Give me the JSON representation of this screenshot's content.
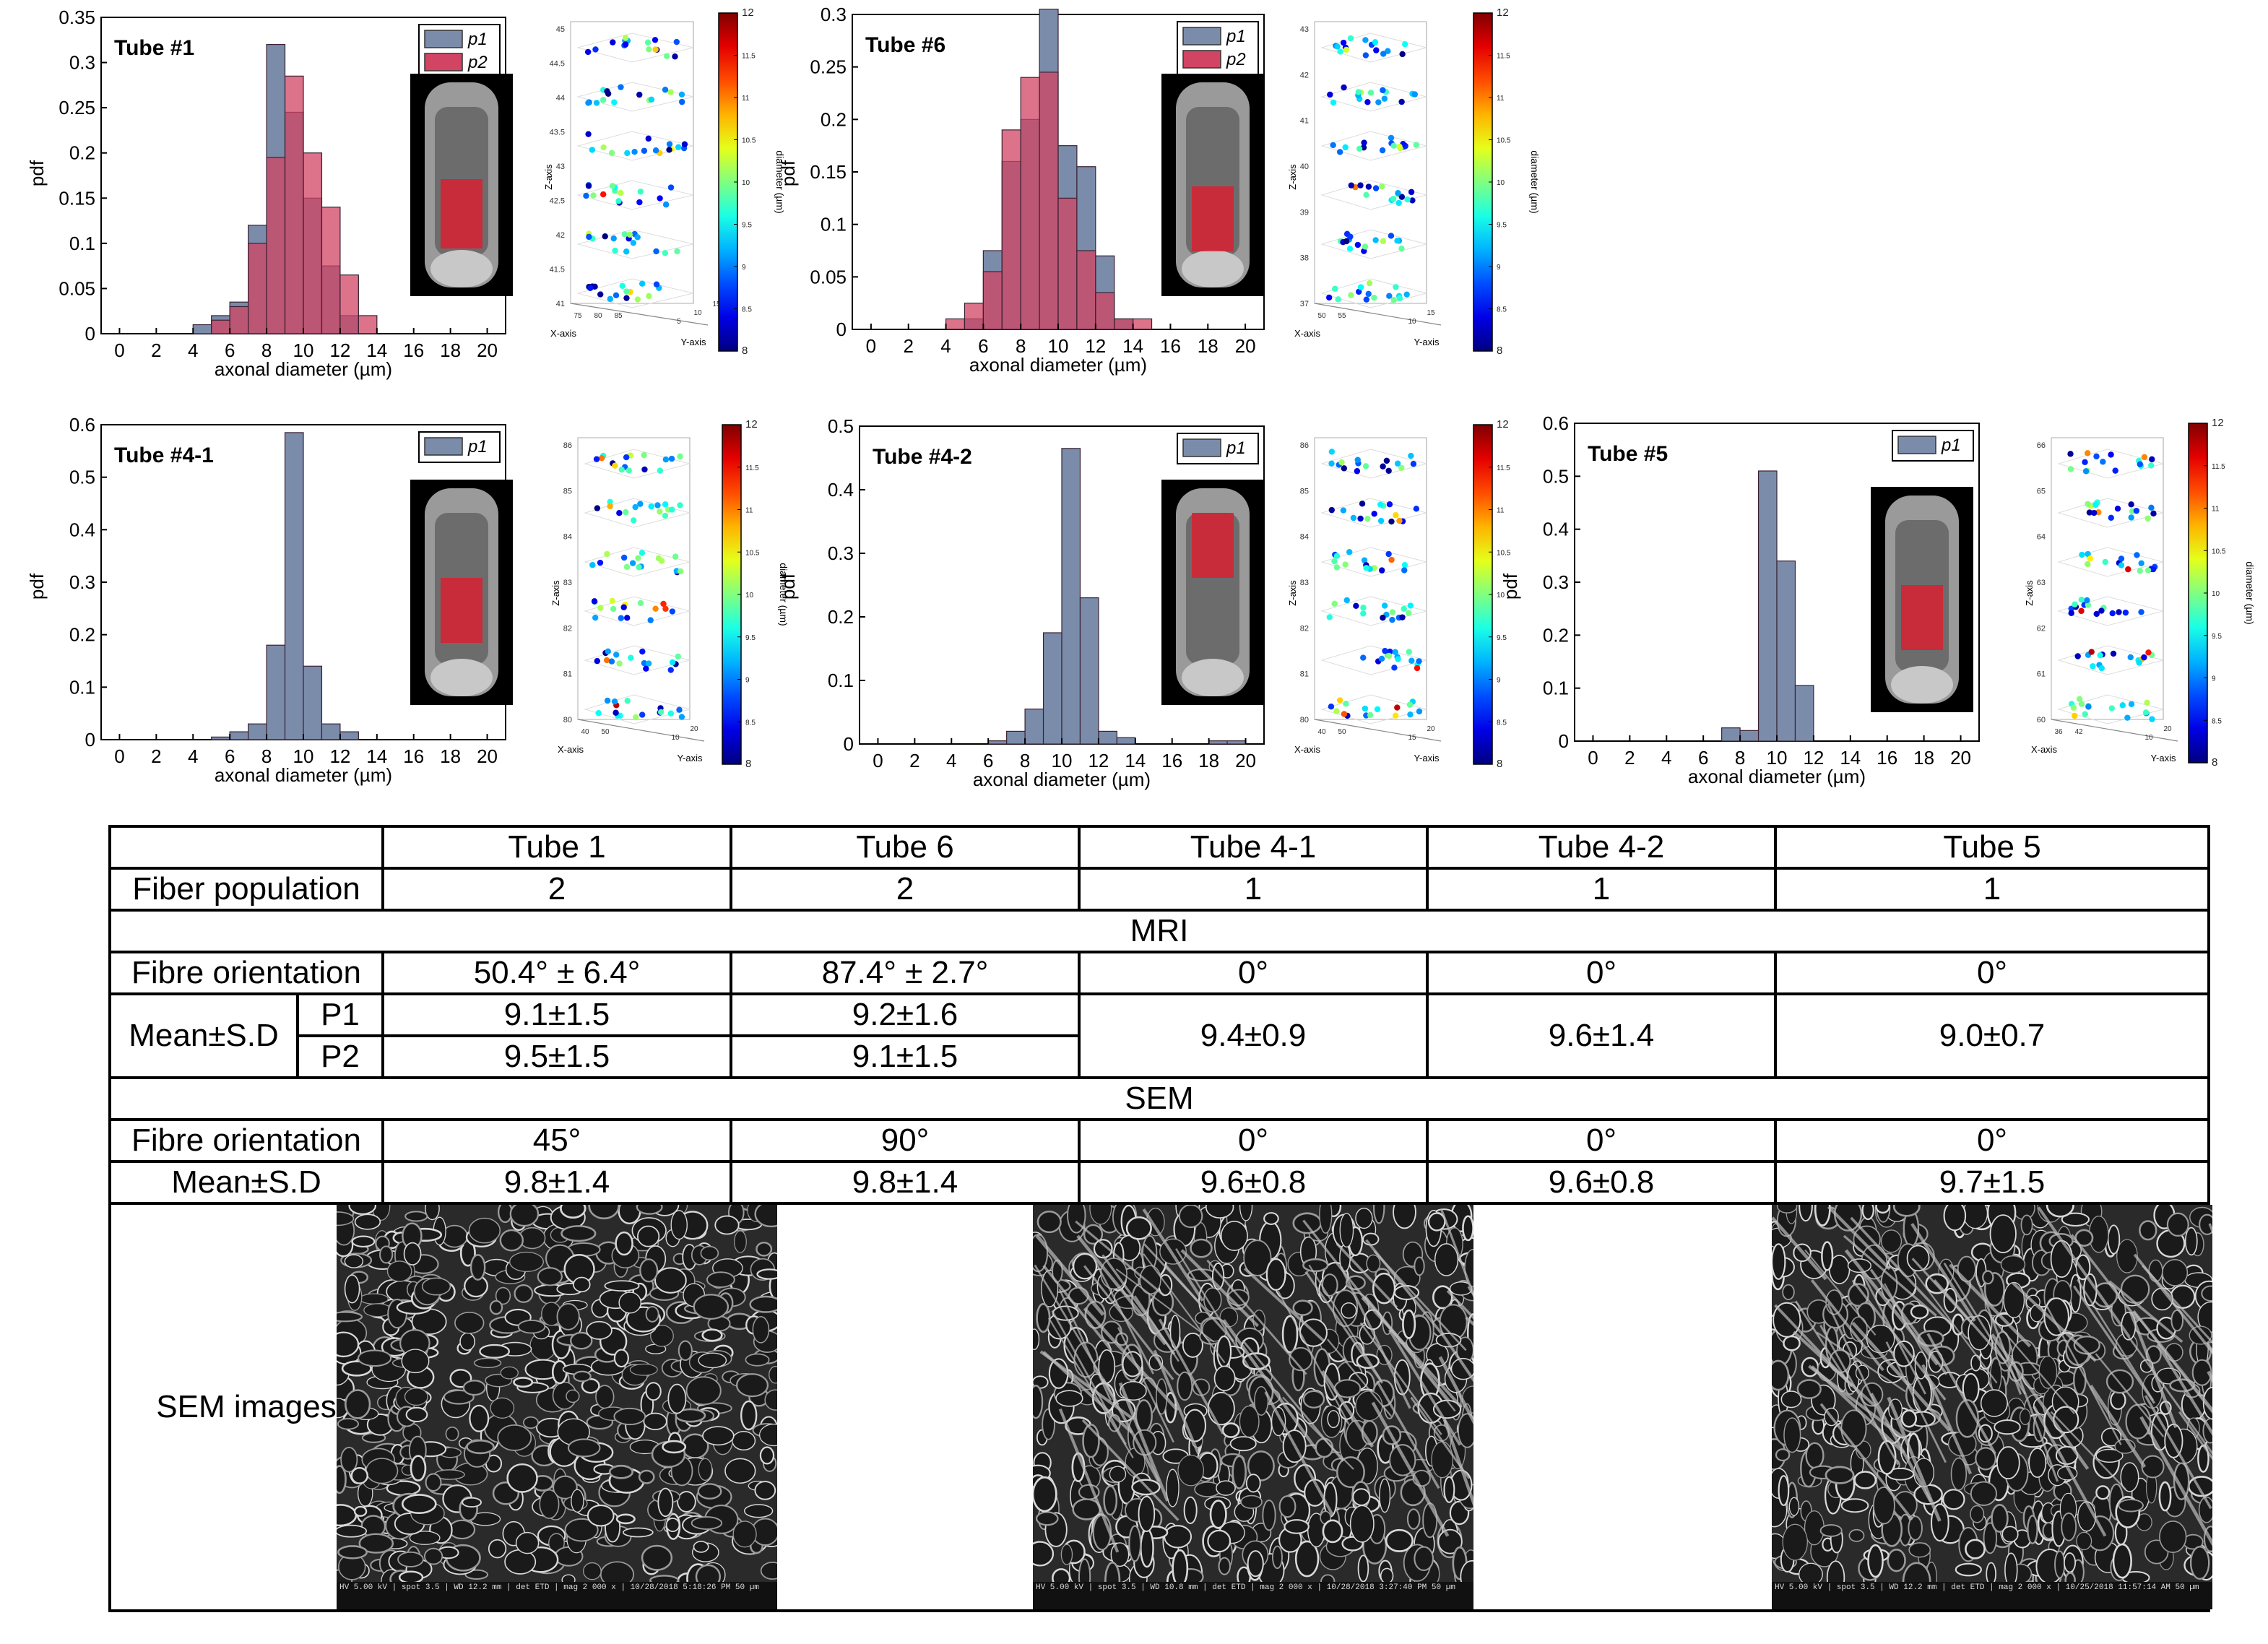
{
  "chart_data": [
    {
      "type": "bar",
      "id": "tube1",
      "panel_label": "Tube #1",
      "xlabel": "axonal diameter (µm)",
      "ylabel": "pdf",
      "xlim": [
        -1,
        21
      ],
      "ylim": [
        0,
        0.35
      ],
      "xticks": [
        "0",
        "2",
        "4",
        "6",
        "8",
        "10",
        "12",
        "14",
        "16",
        "18",
        "20"
      ],
      "yticks": [
        "0",
        "0.05",
        "0.1",
        "0.15",
        "0.2",
        "0.25",
        "0.3",
        "0.35"
      ],
      "bin_edges": [
        4,
        5,
        6,
        7,
        8,
        9,
        10,
        11,
        12,
        13,
        14
      ],
      "legend": [
        "p1",
        "p2"
      ],
      "series": [
        {
          "name": "p1",
          "color": "#7b8cab",
          "values": [
            0.01,
            0.02,
            0.035,
            0.12,
            0.32,
            0.245,
            0.15,
            0.075,
            0.02,
            0.0
          ]
        },
        {
          "name": "p2",
          "color": "#d24463",
          "values": [
            0.0,
            0.015,
            0.03,
            0.1,
            0.195,
            0.285,
            0.2,
            0.14,
            0.065,
            0.02
          ]
        }
      ],
      "colorbar": {
        "min": "8",
        "max": "12",
        "ticks": [
          "8",
          "8.5",
          "9",
          "9.5",
          "10",
          "10.5",
          "11",
          "11.5",
          "12"
        ],
        "label": "diameter (µm)"
      },
      "scatter3d": {
        "zlabel": "Z-axis",
        "xlabel": "X-axis",
        "ylabel": "Y-axis",
        "zticks": [
          "41",
          "41.5",
          "42",
          "42.5",
          "43",
          "43.5",
          "44",
          "44.5",
          "45"
        ],
        "xticks": [
          "75",
          "80",
          "85"
        ],
        "yticks": [
          "5",
          "10",
          "15"
        ]
      }
    },
    {
      "type": "bar",
      "id": "tube6",
      "panel_label": "Tube #6",
      "xlabel": "axonal diameter (µm)",
      "ylabel": "pdf",
      "xlim": [
        -1,
        21
      ],
      "ylim": [
        0,
        0.3
      ],
      "xticks": [
        "0",
        "2",
        "4",
        "6",
        "8",
        "10",
        "12",
        "14",
        "16",
        "18",
        "20"
      ],
      "yticks": [
        "0",
        "0.05",
        "0.1",
        "0.15",
        "0.2",
        "0.25",
        "0.3"
      ],
      "bin_edges": [
        4,
        5,
        6,
        7,
        8,
        9,
        10,
        11,
        12,
        13,
        14,
        15
      ],
      "legend": [
        "p1",
        "p2"
      ],
      "series": [
        {
          "name": "p1",
          "color": "#7b8cab",
          "values": [
            0.0,
            0.01,
            0.075,
            0.16,
            0.2,
            0.305,
            0.175,
            0.155,
            0.07,
            0.01,
            0.0
          ]
        },
        {
          "name": "p2",
          "color": "#d24463",
          "values": [
            0.01,
            0.025,
            0.055,
            0.19,
            0.24,
            0.245,
            0.125,
            0.075,
            0.035,
            0.01,
            0.01
          ]
        }
      ],
      "colorbar": {
        "min": "8",
        "max": "12",
        "ticks": [
          "8",
          "8.5",
          "9",
          "9.5",
          "10",
          "10.5",
          "11",
          "11.5",
          "12"
        ],
        "label": "diameter (µm)"
      },
      "scatter3d": {
        "zlabel": "Z-axis",
        "xlabel": "X-axis",
        "ylabel": "Y-axis",
        "zticks": [
          "37",
          "38",
          "39",
          "40",
          "41",
          "42",
          "43"
        ],
        "xticks": [
          "50",
          "55"
        ],
        "yticks": [
          "10",
          "15"
        ]
      }
    },
    {
      "type": "bar",
      "id": "tube4-1",
      "panel_label": "Tube #4-1",
      "xlabel": "axonal diameter (µm)",
      "ylabel": "pdf",
      "xlim": [
        -1,
        21
      ],
      "ylim": [
        0,
        0.6
      ],
      "xticks": [
        "0",
        "2",
        "4",
        "6",
        "8",
        "10",
        "12",
        "14",
        "16",
        "18",
        "20"
      ],
      "yticks": [
        "0",
        "0.1",
        "0.2",
        "0.3",
        "0.4",
        "0.5",
        "0.6"
      ],
      "bin_edges": [
        5,
        6,
        7,
        8,
        9,
        10,
        11,
        12,
        13
      ],
      "legend": [
        "p1"
      ],
      "series": [
        {
          "name": "p1",
          "color": "#7b8cab",
          "values": [
            0.005,
            0.015,
            0.03,
            0.18,
            0.585,
            0.14,
            0.03,
            0.015
          ]
        }
      ],
      "colorbar": {
        "min": "8",
        "max": "12",
        "ticks": [
          "8",
          "8.5",
          "9",
          "9.5",
          "10",
          "10.5",
          "11",
          "11.5",
          "12"
        ],
        "label": "diameter (µm)"
      },
      "scatter3d": {
        "zlabel": "Z-axis",
        "xlabel": "X-axis",
        "ylabel": "Y-axis",
        "zticks": [
          "80",
          "81",
          "82",
          "83",
          "84",
          "85",
          "86"
        ],
        "xticks": [
          "40",
          "50"
        ],
        "yticks": [
          "10",
          "20"
        ]
      }
    },
    {
      "type": "bar",
      "id": "tube4-2",
      "panel_label": "Tube #4-2",
      "xlabel": "axonal diameter (µm)",
      "ylabel": "pdf",
      "xlim": [
        -1,
        21
      ],
      "ylim": [
        0,
        0.5
      ],
      "xticks": [
        "0",
        "2",
        "4",
        "6",
        "8",
        "10",
        "12",
        "14",
        "16",
        "18",
        "20"
      ],
      "yticks": [
        "0",
        "0.1",
        "0.2",
        "0.3",
        "0.4",
        "0.5"
      ],
      "bin_edges": [
        6,
        7,
        8,
        9,
        10,
        11,
        12,
        13,
        14,
        15,
        16,
        17,
        18,
        19,
        20
      ],
      "legend": [
        "p1"
      ],
      "series": [
        {
          "name": "p1",
          "color": "#7b8cab",
          "values": [
            0.005,
            0.02,
            0.055,
            0.175,
            0.465,
            0.23,
            0.02,
            0.01,
            0.0,
            0.0,
            0.0,
            0.0,
            0.005,
            0.005
          ]
        }
      ],
      "colorbar": {
        "min": "8",
        "max": "12",
        "ticks": [
          "8",
          "8.5",
          "9",
          "9.5",
          "10",
          "10.5",
          "11",
          "11.5",
          "12"
        ],
        "label": ""
      },
      "scatter3d": {
        "zlabel": "Z-axis",
        "xlabel": "X-axis",
        "ylabel": "Y-axis",
        "zticks": [
          "80",
          "81",
          "82",
          "83",
          "84",
          "85",
          "86"
        ],
        "xticks": [
          "40",
          "50"
        ],
        "yticks": [
          "15",
          "20"
        ]
      }
    },
    {
      "type": "bar",
      "id": "tube5",
      "panel_label": "Tube #5",
      "xlabel": "axonal diameter (µm)",
      "ylabel": "pdf",
      "xlim": [
        -1,
        21
      ],
      "ylim": [
        0,
        0.6
      ],
      "xticks": [
        "0",
        "2",
        "4",
        "6",
        "8",
        "10",
        "12",
        "14",
        "16",
        "18",
        "20"
      ],
      "yticks": [
        "0",
        "0.1",
        "0.2",
        "0.3",
        "0.4",
        "0.5",
        "0.6"
      ],
      "bin_edges": [
        7,
        8,
        9,
        10,
        11,
        12
      ],
      "legend": [
        "p1"
      ],
      "series": [
        {
          "name": "p1",
          "color": "#7b8cab",
          "values": [
            0.025,
            0.02,
            0.51,
            0.34,
            0.105
          ]
        }
      ],
      "colorbar": {
        "min": "8",
        "max": "12",
        "ticks": [
          "8",
          "8.5",
          "9",
          "9.5",
          "10",
          "10.5",
          "11",
          "11.5",
          "12"
        ],
        "label": "diameter (µm)"
      },
      "scatter3d": {
        "zlabel": "Z-axis",
        "xlabel": "X-axis",
        "ylabel": "Y-axis",
        "zticks": [
          "60",
          "61",
          "62",
          "63",
          "64",
          "65",
          "66"
        ],
        "xticks": [
          "36",
          "42"
        ],
        "yticks": [
          "10",
          "20"
        ]
      }
    }
  ],
  "table": {
    "columns": [
      "Tube 1",
      "Tube 6",
      "Tube 4-1",
      "Tube 4-2",
      "Tube 5"
    ],
    "fiber_population": {
      "label": "Fiber population",
      "values": [
        "2",
        "2",
        "1",
        "1",
        "1"
      ]
    },
    "mri_header": "MRI",
    "mri_orientation": {
      "label": "Fibre orientation",
      "values": [
        "50.4° ± 6.4°",
        "87.4° ± 2.7°",
        "0°",
        "0°",
        "0°"
      ]
    },
    "mri_mean": {
      "label": "Mean±S.D",
      "p1_label": "P1",
      "p2_label": "P2",
      "tube1": [
        "9.1±1.5",
        "9.5±1.5"
      ],
      "tube6": [
        "9.2±1.6",
        "9.1±1.5"
      ],
      "tube4_1": "9.4±0.9",
      "tube4_2": "9.6±1.4",
      "tube5": "9.0±0.7"
    },
    "sem_header": "SEM",
    "sem_orientation": {
      "label": "Fibre orientation",
      "values": [
        "45°",
        "90°",
        "0°",
        "0°",
        "0°"
      ]
    },
    "sem_mean": {
      "label": "Mean±S.D",
      "values": [
        "9.8±1.4",
        "9.8±1.4",
        "9.6±0.8",
        "9.6±0.8",
        "9.7±1.5"
      ]
    },
    "sem_images_label": "SEM images",
    "sem_images": [
      {
        "column": "Tube 1",
        "info": "HV 5.00 kV | spot 3.5 | WD 12.2 mm | det ETD | mag 2 000 x | 10/28/2018 5:18:26 PM",
        "scale": "50 µm"
      },
      {
        "column": "Tube 4-1",
        "info": "HV 5.00 kV | spot 3.5 | WD 10.8 mm | det ETD | mag 2 000 x | 10/28/2018 3:27:40 PM",
        "scale": "50 µm"
      },
      {
        "column": "Tube 5",
        "info": "HV 5.00 kV | spot 3.5 | WD 12.2 mm | det ETD | mag 2 000 x | 10/25/2018 11:57:14 AM",
        "scale": "50 µm"
      }
    ]
  }
}
